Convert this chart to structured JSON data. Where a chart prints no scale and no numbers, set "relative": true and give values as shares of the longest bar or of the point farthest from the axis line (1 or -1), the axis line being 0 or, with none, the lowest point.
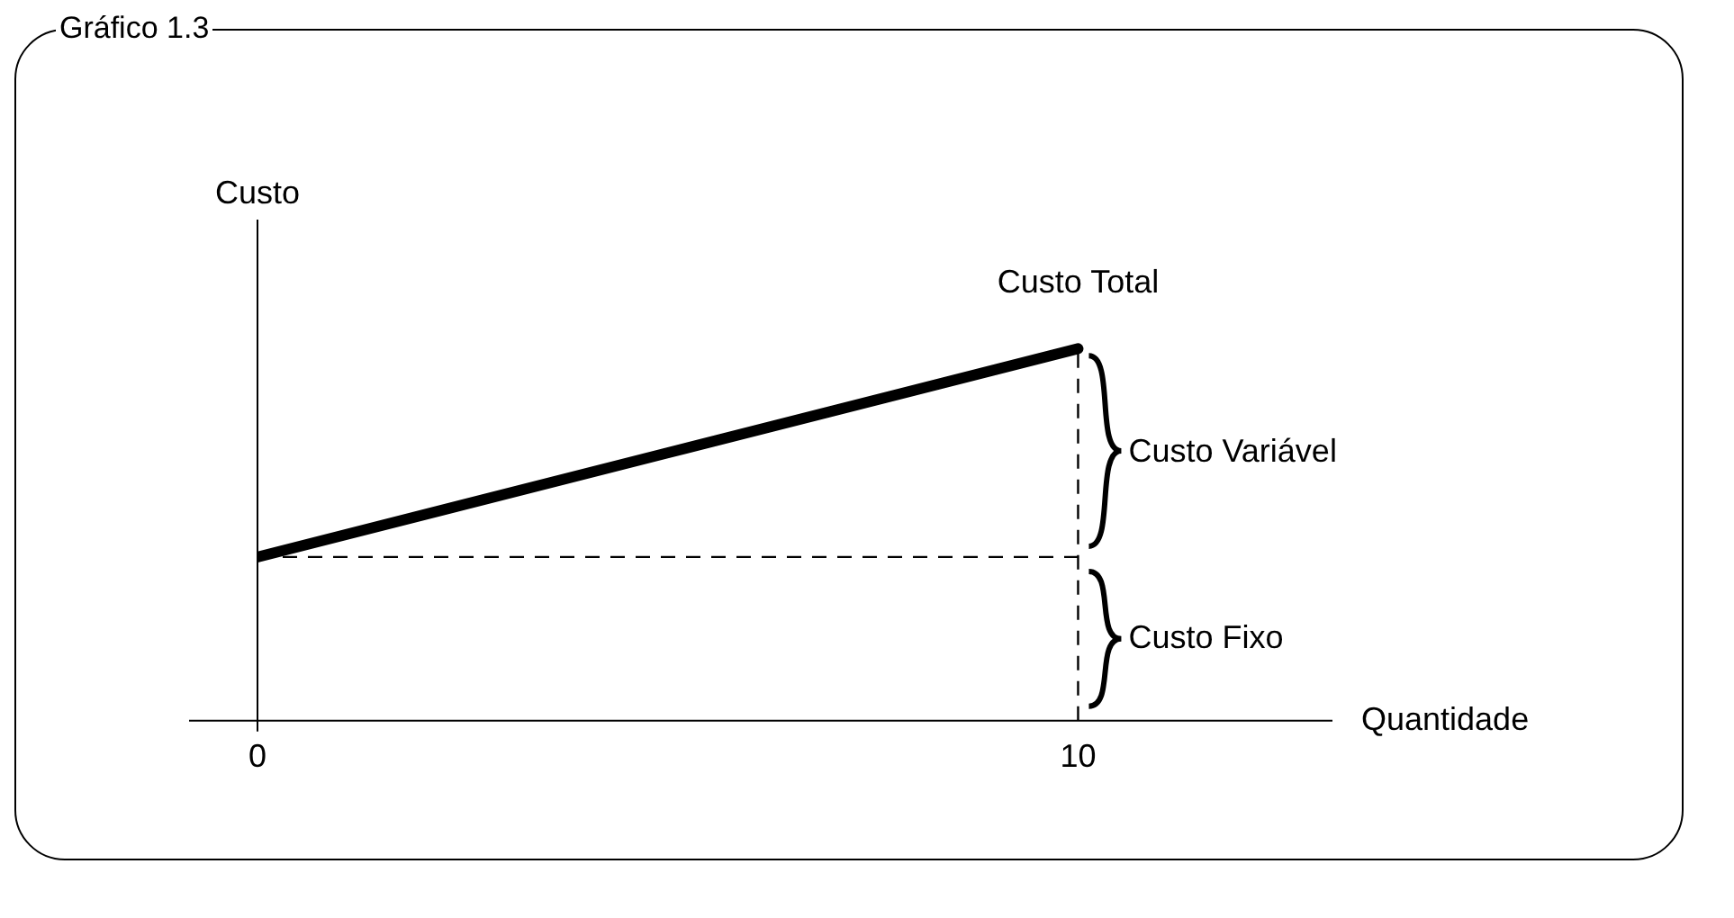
{
  "chart_data": {
    "type": "line",
    "title": "Gráfico 1.3",
    "xlabel": "Quantidade",
    "ylabel": "Custo",
    "x": [
      0,
      10
    ],
    "series": [
      {
        "name": "Custo Total",
        "color": "#000000",
        "values": [
          0.44,
          1
        ]
      }
    ],
    "relative": true,
    "marker": "none",
    "line_style": "solid",
    "xlim": [
      0,
      13.1
    ],
    "xticks": [
      0,
      10
    ],
    "grid": false,
    "legend": false,
    "ref_lines": [
      {
        "axis": "x",
        "value": 10,
        "line_style": "dashed",
        "color": "#000000"
      },
      {
        "axis": "y",
        "value": 0.44,
        "line_style": "dashed",
        "color": "#000000"
      }
    ],
    "annotations": [
      {
        "text": "Custo Variável",
        "x": 10,
        "y": 0.72
      },
      {
        "text": "Custo Fixo",
        "x": 10,
        "y": 0.22
      }
    ]
  }
}
